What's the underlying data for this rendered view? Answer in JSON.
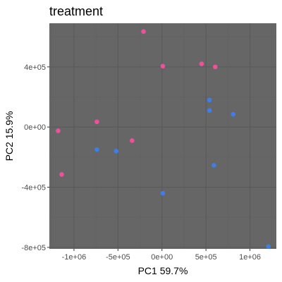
{
  "chart_data": {
    "type": "scatter",
    "title": "treatment",
    "xlabel": "PC1 59.7%",
    "ylabel": "PC2 15.9%",
    "xlim": [
      -1280000,
      1300000
    ],
    "ylim": [
      -810000,
      690000
    ],
    "x_ticks": [
      -1000000,
      -500000,
      0,
      500000,
      1000000
    ],
    "x_tick_labels": [
      "-1e+06",
      "-5e+05",
      "0e+00",
      "5e+05",
      "1e+06"
    ],
    "y_ticks": [
      -800000,
      -400000,
      0,
      400000
    ],
    "y_tick_labels": [
      "-8e+05",
      "-4e+05",
      "0e+00",
      "4e+05"
    ],
    "grid": true,
    "legend": "none",
    "colors": {
      "panel": "#666666",
      "grid_major": "#5a5a5a",
      "grid_minor": "#616161",
      "pink": "#f0509a",
      "blue": "#3d7ee8"
    },
    "series": [
      {
        "color": "#f0509a",
        "points": [
          {
            "x": -210000,
            "y": 635000
          },
          {
            "x": 10000,
            "y": 405000
          },
          {
            "x": 450000,
            "y": 420000
          },
          {
            "x": 605000,
            "y": 400000
          },
          {
            "x": -1180000,
            "y": -25000
          },
          {
            "x": -740000,
            "y": 35000
          },
          {
            "x": -340000,
            "y": -90000
          },
          {
            "x": -1140000,
            "y": -315000
          }
        ]
      },
      {
        "color": "#3d7ee8",
        "points": [
          {
            "x": 540000,
            "y": 180000
          },
          {
            "x": 540000,
            "y": 110000
          },
          {
            "x": 810000,
            "y": 85000
          },
          {
            "x": -740000,
            "y": -150000
          },
          {
            "x": -520000,
            "y": -160000
          },
          {
            "x": 590000,
            "y": -255000
          },
          {
            "x": 10000,
            "y": -440000
          },
          {
            "x": 1210000,
            "y": -795000
          }
        ]
      }
    ]
  }
}
